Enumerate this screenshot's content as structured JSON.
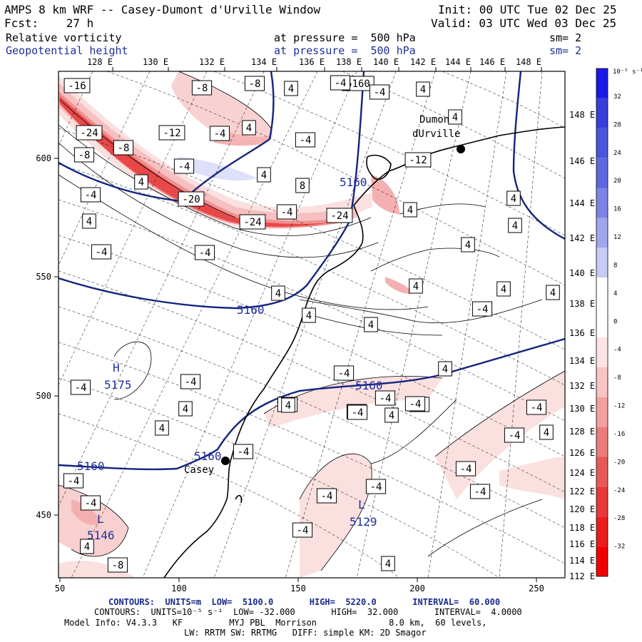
{
  "header": {
    "title": "AMPS 8 km WRF -- Casey-Dumont d'Urville Window",
    "init": "Init: 00 UTC Tue 02 Dec 25",
    "fcst": "Fcst:    27 h",
    "valid": "Valid: 03 UTC Wed 03 Dec 25",
    "field1": {
      "name": "Relative vorticity",
      "pressure": "at pressure =  500 hPa",
      "sm": "sm= 2"
    },
    "field2": {
      "name": "Geopotential height",
      "pressure": "at pressure =  500 hPa",
      "sm": "sm= 2"
    }
  },
  "colors": {
    "height_contour": "#14247e",
    "vorticity_pos": "#2a3de0",
    "vorticity_neg": "#e82020",
    "coastline": "#000000",
    "text_blue": "#1f2f9a"
  },
  "axes": {
    "x_ticks": [
      "50",
      "100",
      "150",
      "200",
      "250"
    ],
    "y_ticks": [
      "450",
      "500",
      "550",
      "600"
    ],
    "lon_top": [
      "128 E",
      "130 E",
      "132 E",
      "134 E",
      "136 E",
      "138 E",
      "140 E",
      "142 E",
      "144 E",
      "146 E",
      "148 E"
    ],
    "lon_right": [
      "148 E",
      "146 E",
      "144 E",
      "142 E",
      "140 E",
      "138 E",
      "136 E",
      "134 E",
      "132 E",
      "130 E",
      "128 E",
      "126 E",
      "124 E",
      "122 E",
      "120 E",
      "118 E",
      "116 E",
      "114 E",
      "112 E"
    ]
  },
  "colorbar": {
    "unit": "10⁻⁵ s⁻¹",
    "labels": [
      "32",
      "28",
      "24",
      "20",
      "16",
      "12",
      "8",
      "4",
      "0",
      "-4",
      "-8",
      "-12",
      "-16",
      "-20",
      "-24",
      "-28",
      "-32"
    ],
    "colors": [
      "#1a1ae8",
      "#3540dc",
      "#4a55de",
      "#6068e0",
      "#7c84e6",
      "#a0a6ee",
      "#c8cbf5",
      "#ffffff",
      "#ffffff",
      "#fde4e4",
      "#f8c4c4",
      "#f2a0a0",
      "#ec7c7c",
      "#e85858",
      "#e83838",
      "#ec1c1c",
      "#f00000"
    ]
  },
  "stations": [
    {
      "name": "Casey"
    },
    {
      "name": "Dumont\ndUrville"
    }
  ],
  "height_labels": [
    "5160",
    "5160",
    "5160",
    "5160",
    "5160",
    "5160",
    "5160"
  ],
  "centers": [
    {
      "letter": "H",
      "value": "5175"
    },
    {
      "letter": "L",
      "value": "5146"
    },
    {
      "letter": "L",
      "value": "5129"
    }
  ],
  "vort_labels": [
    "-16",
    "-8",
    "-8",
    "4",
    "5160",
    "-4",
    "4",
    "-24",
    "-8",
    "-12",
    "-4",
    "4",
    "-4",
    "-8",
    "-4",
    "4",
    "8",
    "4",
    "-20",
    "-24",
    "-4",
    "-24",
    "-12",
    "4",
    "4",
    "4",
    "-4",
    "-4",
    "4",
    "-4",
    "4",
    "4",
    "4",
    "4",
    "-4",
    "4",
    "4",
    "4",
    "4",
    "4",
    "-4",
    "-8",
    "-4",
    "-4",
    "4",
    "4",
    "-4",
    "-4",
    "-4",
    "-4",
    "-4",
    "-4",
    "4",
    "-8",
    "-4",
    "-4",
    "-4",
    "-4",
    "-4",
    "-4",
    "-4",
    "4",
    "4",
    "4",
    "-4",
    "-4",
    "4",
    "-4"
  ],
  "footer": {
    "line1": "CONTOURS:  UNITS=m  LOW=  5100.0       HIGH=  5220.0       INTERVAL=  60.000",
    "line2": "CONTOURS:  UNITS=10⁻⁵ s⁻¹  LOW= -32.000       HIGH=  32.000       INTERVAL=  4.0000",
    "line3": "Model Info: V4.3.3   KF         MYJ PBL  Morrison              8.0 km,  60 levels,",
    "line4": "LW: RRTM SW: RRTMG   DIFF: simple KM: 2D Smagor"
  }
}
